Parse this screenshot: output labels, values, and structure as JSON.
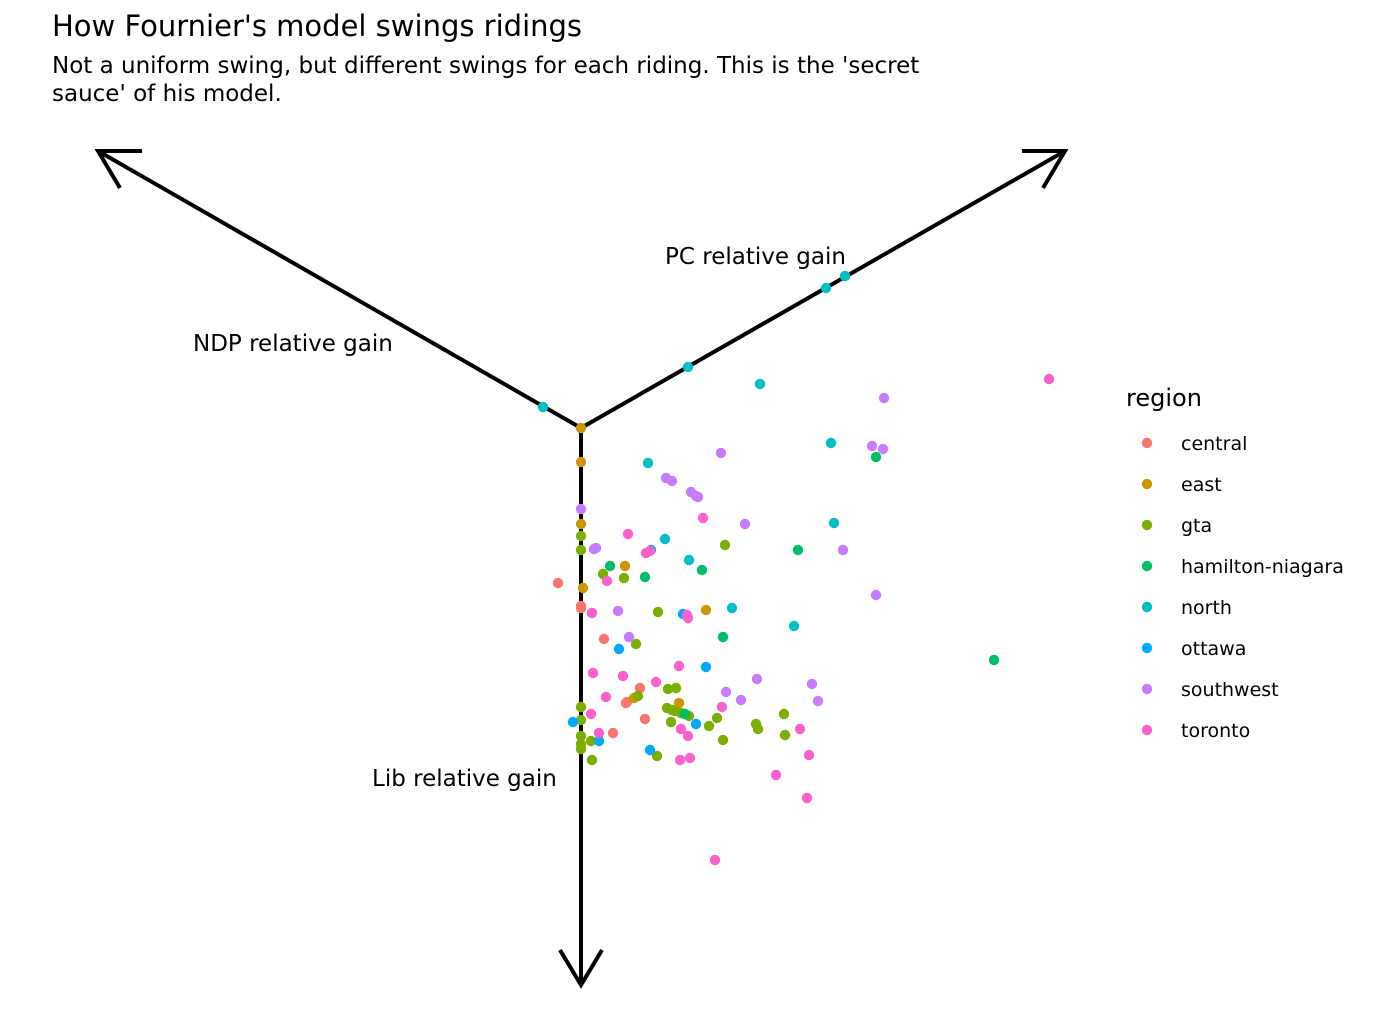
{
  "chart_data": {
    "type": "scatter",
    "title": "How Fournier's model swings ridings",
    "subtitle": "Not a uniform swing, but different swings for each riding. This is the 'secret sauce' of his model.",
    "axes": {
      "pc": "PC relative gain",
      "ndp": "NDP relative gain",
      "lib": "Lib relative gain"
    },
    "legend": {
      "title": "region",
      "position": "right"
    },
    "grid": false,
    "colors": {
      "central": "#F8766D",
      "east": "#CD9600",
      "gta": "#7CAE00",
      "hamilton-niagara": "#00BE67",
      "north": "#00BFC4",
      "ottawa": "#00A9FF",
      "southwest": "#C77CFF",
      "toronto": "#FF61CC"
    },
    "series": [
      {
        "name": "central",
        "points": [
          [
            -23,
            583
          ],
          [
            0,
            606
          ],
          [
            0,
            608
          ],
          [
            11,
            613
          ],
          [
            23,
            639
          ],
          [
            32,
            733
          ],
          [
            45,
            703
          ],
          [
            46,
            702
          ],
          [
            59,
            688
          ],
          [
            64,
            719
          ]
        ]
      },
      {
        "name": "east",
        "points": [
          [
            0,
            428
          ],
          [
            0,
            462
          ],
          [
            0,
            524
          ],
          [
            2,
            588
          ],
          [
            44,
            566
          ],
          [
            53,
            698
          ],
          [
            98,
            703
          ],
          [
            125,
            610
          ]
        ]
      },
      {
        "name": "gta",
        "points": [
          [
            0,
            536
          ],
          [
            0,
            550
          ],
          [
            0,
            707
          ],
          [
            0,
            720
          ],
          [
            0,
            736
          ],
          [
            0,
            744
          ],
          [
            0,
            749
          ],
          [
            10,
            741
          ],
          [
            11,
            760
          ],
          [
            22,
            574
          ],
          [
            43,
            578
          ],
          [
            55,
            644
          ],
          [
            57,
            696
          ],
          [
            77,
            612
          ],
          [
            87,
            689
          ],
          [
            86,
            708
          ],
          [
            90,
            722
          ],
          [
            95,
            688
          ],
          [
            91,
            710
          ],
          [
            94,
            711
          ],
          [
            100,
            713
          ],
          [
            108,
            716
          ],
          [
            128,
            726
          ],
          [
            136,
            718
          ],
          [
            142,
            740
          ],
          [
            144,
            545
          ],
          [
            175,
            724
          ],
          [
            177,
            729
          ],
          [
            203,
            714
          ],
          [
            204,
            735
          ],
          [
            76,
            756
          ]
        ]
      },
      {
        "name": "hamilton-niagara",
        "points": [
          [
            29,
            566
          ],
          [
            64,
            577
          ],
          [
            104,
            714
          ],
          [
            121,
            570
          ],
          [
            142,
            637
          ],
          [
            217,
            550
          ],
          [
            295,
            457
          ],
          [
            413,
            660
          ]
        ]
      },
      {
        "name": "north",
        "points": [
          [
            -38,
            407
          ],
          [
            67,
            463
          ],
          [
            84,
            539
          ],
          [
            108,
            560
          ],
          [
            107,
            367
          ],
          [
            151,
            608
          ],
          [
            179,
            384
          ],
          [
            213,
            626
          ],
          [
            250,
            443
          ],
          [
            253,
            523
          ],
          [
            245,
            288
          ],
          [
            264,
            276
          ]
        ]
      },
      {
        "name": "ottawa",
        "points": [
          [
            -8,
            722
          ],
          [
            18,
            741
          ],
          [
            38,
            649
          ],
          [
            70,
            550
          ],
          [
            69,
            750
          ],
          [
            102,
            614
          ],
          [
            115,
            724
          ],
          [
            125,
            667
          ]
        ]
      },
      {
        "name": "southwest",
        "points": [
          [
            0,
            509
          ],
          [
            13,
            549
          ],
          [
            15,
            548
          ],
          [
            37,
            611
          ],
          [
            48,
            637
          ],
          [
            85,
            478
          ],
          [
            91,
            481
          ],
          [
            110,
            492
          ],
          [
            115,
            496
          ],
          [
            117,
            497
          ],
          [
            140,
            453
          ],
          [
            164,
            524
          ],
          [
            145,
            692
          ],
          [
            160,
            700
          ],
          [
            176,
            679
          ],
          [
            231,
            684
          ],
          [
            237,
            701
          ],
          [
            262,
            550
          ],
          [
            291,
            446
          ],
          [
            303,
            398
          ],
          [
            302,
            449
          ],
          [
            295,
            595
          ]
        ]
      },
      {
        "name": "toronto",
        "points": [
          [
            26,
            581
          ],
          [
            11,
            613
          ],
          [
            47,
            534
          ],
          [
            65,
            553
          ],
          [
            69,
            551
          ],
          [
            12,
            673
          ],
          [
            25,
            697
          ],
          [
            42,
            676
          ],
          [
            75,
            682
          ],
          [
            98,
            666
          ],
          [
            106,
            615
          ],
          [
            107,
            618
          ],
          [
            122,
            518
          ],
          [
            10,
            714
          ],
          [
            18,
            733
          ],
          [
            100,
            729
          ],
          [
            107,
            736
          ],
          [
            99,
            760
          ],
          [
            109,
            758
          ],
          [
            141,
            707
          ],
          [
            134,
            860
          ],
          [
            195,
            775
          ],
          [
            219,
            729
          ],
          [
            226,
            798
          ],
          [
            228,
            755
          ],
          [
            468,
            379
          ]
        ]
      }
    ]
  }
}
